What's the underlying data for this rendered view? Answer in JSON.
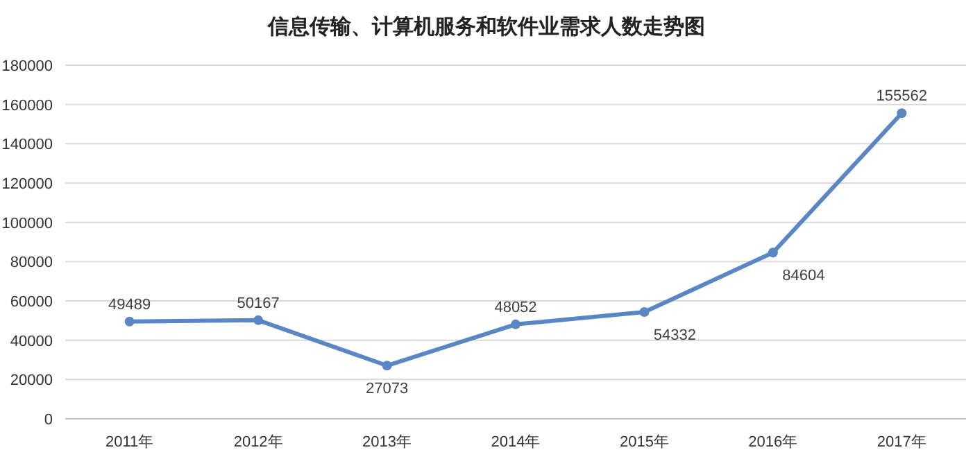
{
  "chart_data": {
    "type": "line",
    "title": "信息传输、计算机服务和软件业需求人数走势图",
    "categories": [
      "2011年",
      "2012年",
      "2013年",
      "2014年",
      "2015年",
      "2016年",
      "2017年"
    ],
    "series": [
      {
        "color": "#5a86c4",
        "values": [
          49489,
          50167,
          27073,
          48052,
          54332,
          84604,
          155562
        ]
      }
    ],
    "ylim": [
      0,
      180000
    ],
    "yticks": [
      0,
      20000,
      40000,
      60000,
      80000,
      100000,
      120000,
      140000,
      160000,
      180000
    ],
    "grid": "y",
    "marker": "circle",
    "line_style": "solid",
    "data_labels": true
  }
}
